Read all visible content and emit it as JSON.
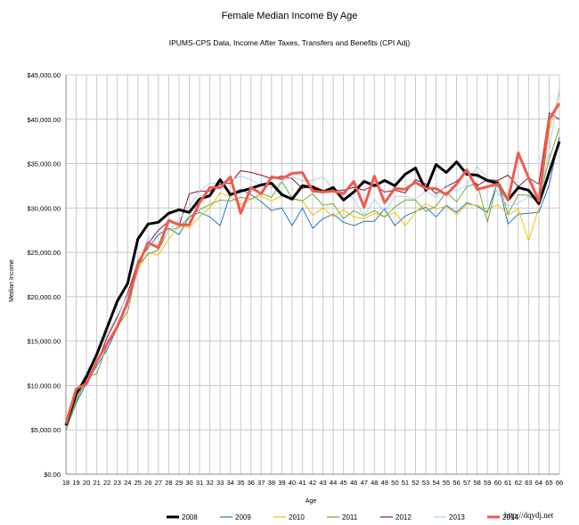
{
  "chart_data": {
    "type": "line",
    "title": "Female Median Income By Age",
    "subtitle": "IPUMS-CPS Data, Income After Taxes, Transfers and Benefits (CPI Adj)",
    "xlabel": "Age",
    "ylabel": "Median Income",
    "ylim": [
      0,
      45000
    ],
    "y_ticks": [
      "$0.00",
      "$5,000.00",
      "$10,000.00",
      "$15,000.00",
      "$20,000.00",
      "$25,000.00",
      "$30,000.00",
      "$35,000.00",
      "$40,000.00",
      "$45,000.00"
    ],
    "grid": true,
    "legend_position": "bottom",
    "x": [
      18,
      19,
      20,
      21,
      22,
      23,
      24,
      25,
      26,
      27,
      28,
      29,
      30,
      31,
      32,
      33,
      34,
      35,
      36,
      37,
      38,
      39,
      40,
      41,
      42,
      43,
      44,
      45,
      46,
      47,
      48,
      49,
      50,
      51,
      52,
      53,
      54,
      55,
      56,
      57,
      58,
      59,
      60,
      61,
      62,
      63,
      64,
      65,
      66
    ],
    "series": [
      {
        "name": "2008",
        "color": "#000000",
        "values": [
          5500,
          9000,
          11000,
          13500,
          16500,
          19500,
          21500,
          26500,
          28200,
          28400,
          29400,
          29800,
          29500,
          31000,
          31400,
          33200,
          31500,
          31900,
          32200,
          32600,
          32800,
          31500,
          31000,
          32500,
          32300,
          31800,
          32300,
          30900,
          31800,
          33000,
          32500,
          33100,
          32500,
          33800,
          34500,
          32000,
          34900,
          34000,
          35200,
          33800,
          33700,
          33100,
          32800,
          30900,
          32300,
          32000,
          30500,
          34000,
          37500
        ]
      },
      {
        "name": "2009",
        "color": "#1f77c8",
        "values": [
          5000,
          8000,
          10300,
          12200,
          14000,
          16500,
          19800,
          24000,
          25500,
          27000,
          27700,
          27000,
          29000,
          29500,
          29000,
          28000,
          31600,
          32100,
          31500,
          30700,
          29700,
          30000,
          28000,
          30000,
          27700,
          28800,
          29300,
          28400,
          28000,
          28500,
          28500,
          29900,
          28000,
          29100,
          29600,
          30100,
          29000,
          30300,
          29500,
          30600,
          30200,
          29500,
          33000,
          28200,
          29300,
          29400,
          29500,
          32600,
          38000
        ]
      },
      {
        "name": "2010",
        "color": "#f2c200",
        "values": [
          5100,
          8400,
          10500,
          12800,
          14700,
          16900,
          19400,
          23000,
          25000,
          24700,
          26500,
          28000,
          27800,
          29000,
          30000,
          31700,
          31300,
          30400,
          31000,
          31300,
          30800,
          31400,
          31000,
          30800,
          29200,
          30000,
          29000,
          29800,
          29000,
          28800,
          29400,
          29000,
          29500,
          28000,
          29500,
          30500,
          29900,
          30200,
          29200,
          30400,
          30300,
          29800,
          30400,
          29200,
          29900,
          26300,
          30000,
          38800,
          43000
        ]
      },
      {
        "name": "2011",
        "color": "#6fa83a",
        "values": [
          4900,
          8200,
          11000,
          11300,
          14500,
          16600,
          18300,
          23500,
          24800,
          25300,
          27500,
          27800,
          29000,
          29800,
          30400,
          30900,
          30800,
          31200,
          31000,
          31600,
          31200,
          33000,
          31100,
          30800,
          31600,
          30300,
          30500,
          28800,
          29700,
          29100,
          29700,
          29000,
          30100,
          30900,
          30900,
          29600,
          30200,
          31800,
          30700,
          32400,
          32800,
          28400,
          33100,
          29300,
          31500,
          31400,
          30800,
          35500,
          39000
        ]
      },
      {
        "name": "2012",
        "color": "#8b1535",
        "values": [
          5800,
          9300,
          10500,
          12500,
          15400,
          17700,
          20400,
          23900,
          26000,
          27500,
          28500,
          28000,
          31600,
          31900,
          31900,
          32700,
          32800,
          34200,
          34000,
          33700,
          33300,
          33600,
          33300,
          32200,
          32500,
          32000,
          32000,
          32000,
          32300,
          32000,
          32600,
          31800,
          32000,
          31700,
          33200,
          32700,
          31600,
          32400,
          33000,
          34200,
          32500,
          33200,
          33100,
          33700,
          32400,
          33400,
          32700,
          40700,
          40000
        ]
      },
      {
        "name": "2013",
        "color": "#a9d3f2",
        "values": [
          5300,
          8600,
          11700,
          13200,
          15800,
          17900,
          20200,
          23200,
          26700,
          25700,
          27400,
          28700,
          30200,
          31900,
          32800,
          32800,
          33100,
          33600,
          33200,
          32500,
          32300,
          33000,
          33500,
          33100,
          33100,
          33500,
          32100,
          31800,
          31100,
          29100,
          31000,
          29500,
          31300,
          31300,
          31000,
          31900,
          31200,
          32600,
          31900,
          32600,
          34700,
          33400,
          31700,
          30200,
          30500,
          31300,
          30700,
          36500,
          43500
        ]
      },
      {
        "name": "2014",
        "color": "#f05a4f",
        "values": [
          5700,
          9600,
          10200,
          12700,
          14700,
          16600,
          19400,
          23500,
          26100,
          25500,
          28600,
          28100,
          28100,
          30600,
          32300,
          32300,
          33500,
          29400,
          32300,
          31600,
          33500,
          33300,
          33900,
          34000,
          31900,
          31800,
          31900,
          31600,
          33000,
          30100,
          33600,
          30600,
          32200,
          32100,
          32900,
          32200,
          32200,
          31500,
          32700,
          34300,
          32100,
          32400,
          32700,
          30900,
          36200,
          33400,
          30800,
          40000,
          41800
        ]
      }
    ]
  },
  "watermark": "http://dqydj.net"
}
